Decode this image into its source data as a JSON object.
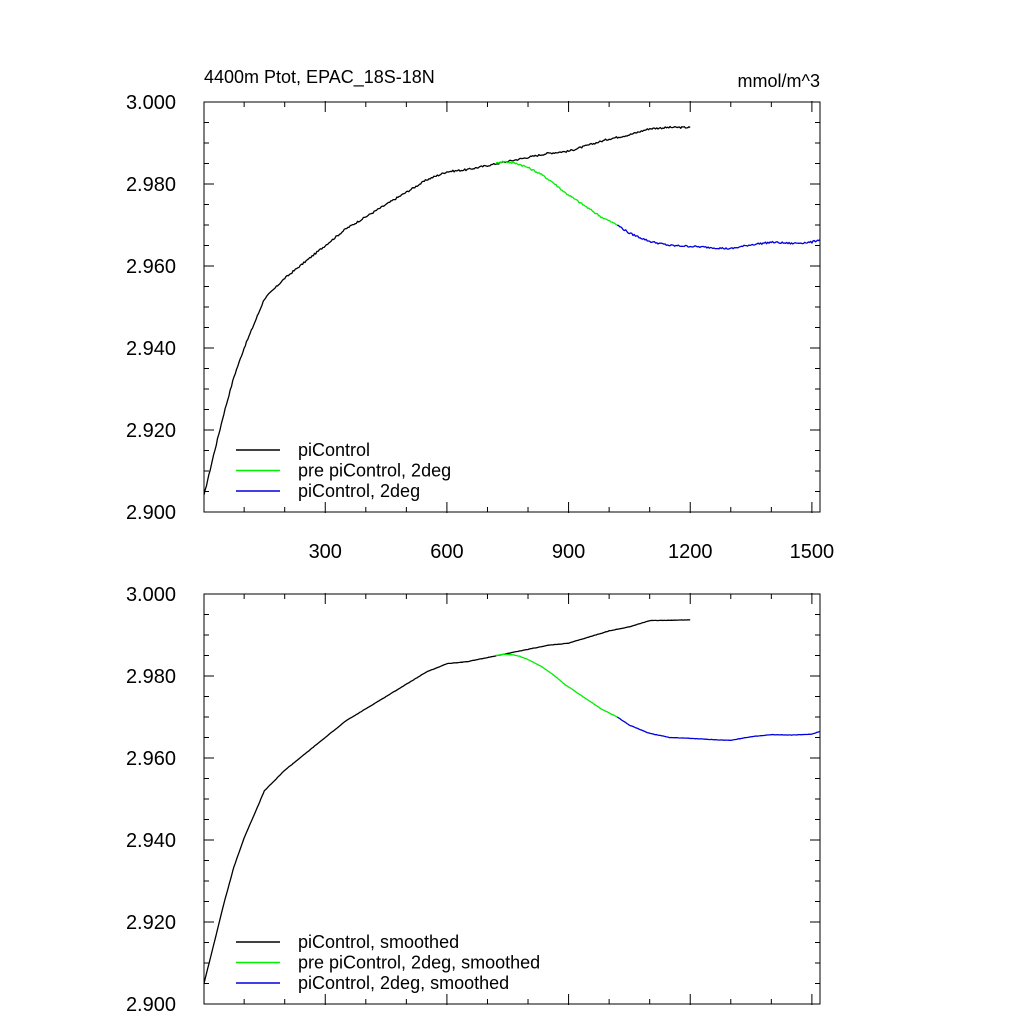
{
  "chart_data": [
    {
      "type": "line",
      "title": "4400m Ptot, EPAC_18S-18N",
      "units": "mmol/m^3",
      "xlim": [
        1,
        1520
      ],
      "ylim": [
        2.9,
        3.0
      ],
      "x_ticks": [
        300,
        600,
        900,
        1200,
        1500
      ],
      "y_ticks": [
        "2.900",
        "2.920",
        "2.940",
        "2.960",
        "2.980",
        "3.000"
      ],
      "y_tick_values": [
        2.9,
        2.92,
        2.94,
        2.96,
        2.98,
        3.0
      ],
      "legend_placement": "bottom-left",
      "series": [
        {
          "name": "piControl",
          "color": "#000000",
          "x": [
            1,
            25,
            50,
            75,
            100,
            150,
            200,
            250,
            300,
            350,
            400,
            450,
            500,
            550,
            600,
            650,
            700,
            725,
            750,
            800,
            850,
            900,
            950,
            1000,
            1050,
            1100,
            1150,
            1200
          ],
          "y": [
            2.904,
            2.914,
            2.924,
            2.933,
            2.94,
            2.952,
            2.957,
            2.961,
            2.965,
            2.969,
            2.972,
            2.975,
            2.978,
            2.981,
            2.983,
            2.9835,
            2.9845,
            2.985,
            2.9855,
            2.9865,
            2.9875,
            2.988,
            2.9895,
            2.991,
            2.992,
            2.9935,
            2.9938,
            2.9938
          ]
        },
        {
          "name": "pre piControl, 2deg",
          "color": "#00ee00",
          "x": [
            720,
            740,
            760,
            780,
            800,
            830,
            860,
            890,
            920,
            950,
            980,
            1010,
            1020
          ],
          "y": [
            2.985,
            2.9855,
            2.9852,
            2.9848,
            2.984,
            2.9825,
            2.9805,
            2.978,
            2.976,
            2.974,
            2.972,
            2.9705,
            2.97
          ]
        },
        {
          "name": "piControl, 2deg",
          "color": "#0000dd",
          "x": [
            1020,
            1050,
            1100,
            1150,
            1200,
            1250,
            1300,
            1350,
            1400,
            1450,
            1500,
            1520
          ],
          "y": [
            2.97,
            2.968,
            2.966,
            2.965,
            2.9648,
            2.9645,
            2.9642,
            2.9652,
            2.9658,
            2.9655,
            2.9658,
            2.9665
          ]
        }
      ]
    },
    {
      "type": "line",
      "xlim": [
        1,
        1520
      ],
      "ylim": [
        2.9,
        3.0
      ],
      "y_ticks": [
        "2.900",
        "2.920",
        "2.940",
        "2.960",
        "2.980",
        "3.000"
      ],
      "y_tick_values": [
        2.9,
        2.92,
        2.94,
        2.96,
        2.98,
        3.0
      ],
      "legend_placement": "bottom-left",
      "series": [
        {
          "name": "piControl, smoothed",
          "color": "#000000",
          "x": [
            1,
            25,
            50,
            75,
            100,
            150,
            200,
            250,
            300,
            350,
            400,
            450,
            500,
            550,
            600,
            650,
            700,
            725,
            750,
            800,
            850,
            900,
            950,
            1000,
            1050,
            1100,
            1150,
            1200
          ],
          "y": [
            2.905,
            2.9145,
            2.9245,
            2.9335,
            2.9405,
            2.952,
            2.957,
            2.961,
            2.965,
            2.969,
            2.972,
            2.975,
            2.978,
            2.981,
            2.983,
            2.9835,
            2.9845,
            2.985,
            2.9855,
            2.9865,
            2.9875,
            2.988,
            2.9895,
            2.991,
            2.992,
            2.9935,
            2.9936,
            2.9937
          ]
        },
        {
          "name": "pre piControl, 2deg, smoothed",
          "color": "#00ee00",
          "x": [
            720,
            740,
            760,
            780,
            800,
            830,
            860,
            890,
            920,
            950,
            980,
            1010,
            1020
          ],
          "y": [
            2.985,
            2.9853,
            2.9852,
            2.9848,
            2.984,
            2.9825,
            2.9805,
            2.978,
            2.976,
            2.974,
            2.972,
            2.9705,
            2.97
          ]
        },
        {
          "name": "piControl, 2deg, smoothed",
          "color": "#0000dd",
          "x": [
            1020,
            1050,
            1100,
            1150,
            1200,
            1250,
            1300,
            1350,
            1400,
            1450,
            1500,
            1520
          ],
          "y": [
            2.97,
            2.968,
            2.966,
            2.965,
            2.9648,
            2.9645,
            2.9643,
            2.9652,
            2.9657,
            2.9656,
            2.9658,
            2.9665
          ]
        }
      ]
    }
  ]
}
